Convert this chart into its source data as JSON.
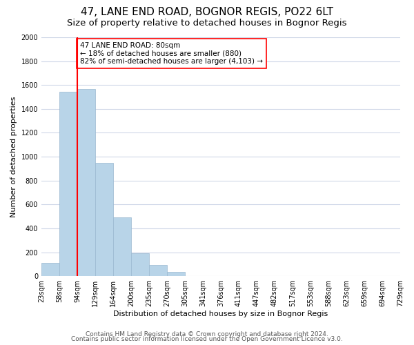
{
  "title": "47, LANE END ROAD, BOGNOR REGIS, PO22 6LT",
  "subtitle": "Size of property relative to detached houses in Bognor Regis",
  "xlabel": "Distribution of detached houses by size in Bognor Regis",
  "ylabel": "Number of detached properties",
  "bin_labels": [
    "23sqm",
    "58sqm",
    "94sqm",
    "129sqm",
    "164sqm",
    "200sqm",
    "235sqm",
    "270sqm",
    "305sqm",
    "341sqm",
    "376sqm",
    "411sqm",
    "447sqm",
    "482sqm",
    "517sqm",
    "553sqm",
    "588sqm",
    "623sqm",
    "659sqm",
    "694sqm",
    "729sqm"
  ],
  "bar_values": [
    110,
    1545,
    1565,
    950,
    490,
    190,
    95,
    35,
    0,
    0,
    0,
    0,
    0,
    0,
    0,
    0,
    0,
    0,
    0,
    0
  ],
  "bar_color": "#b8d4e8",
  "bar_edge_color": "#9ab8d0",
  "grid_color": "#d0d8e8",
  "vline_x_index": 2,
  "vline_color": "red",
  "annotation_line1": "47 LANE END ROAD: 80sqm",
  "annotation_line2": "← 18% of detached houses are smaller (880)",
  "annotation_line3": "82% of semi-detached houses are larger (4,103) →",
  "annotation_box_color": "white",
  "annotation_box_edgecolor": "red",
  "ylim": [
    0,
    2000
  ],
  "yticks": [
    0,
    200,
    400,
    600,
    800,
    1000,
    1200,
    1400,
    1600,
    1800,
    2000
  ],
  "footer1": "Contains HM Land Registry data © Crown copyright and database right 2024.",
  "footer2": "Contains public sector information licensed under the Open Government Licence v3.0.",
  "title_fontsize": 11,
  "subtitle_fontsize": 9.5,
  "ylabel_fontsize": 8,
  "xlabel_fontsize": 8,
  "tick_fontsize": 7,
  "footer_fontsize": 6.5
}
